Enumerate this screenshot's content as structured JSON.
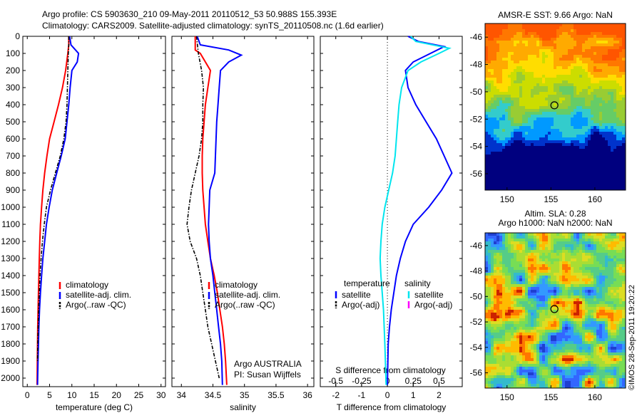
{
  "header": {
    "line1": "Argo profile: CS 5903630_210 09-May-2011 20110512_53 50.988S 155.393E",
    "line2": "Climatology: CARS2009. Satellite-adjusted climatology: synTS_20110508.nc (1.6d earlier)"
  },
  "chart_data": [
    {
      "type": "line",
      "xlabel": "temperature (deg C)",
      "xlim": [
        -1,
        31
      ],
      "ylim": [
        0,
        2050
      ],
      "y_reversed": true,
      "xticks": [
        0,
        5,
        10,
        15,
        20,
        25,
        30
      ],
      "yticks": [
        0,
        100,
        200,
        300,
        400,
        500,
        600,
        700,
        800,
        900,
        1000,
        1100,
        1200,
        1300,
        1400,
        1500,
        1600,
        1700,
        1800,
        1900,
        2000
      ],
      "legend": [
        "climatology",
        "satellite-adj. clim.",
        "Argo(..raw -QC)"
      ],
      "legend_position": "lower-right",
      "series": [
        {
          "name": "climatology",
          "color": "#ff0000",
          "x": [
            9.3,
            9.3,
            9.1,
            8.6,
            7.9,
            7.0,
            6.0,
            5.0,
            4.4,
            3.9,
            3.5,
            3.2,
            2.95,
            2.8,
            2.7,
            2.6,
            2.5,
            2.42,
            2.35,
            2.3,
            2.25,
            2.2
          ],
          "y": [
            0,
            50,
            100,
            200,
            300,
            400,
            500,
            600,
            700,
            800,
            900,
            1000,
            1100,
            1200,
            1300,
            1400,
            1500,
            1600,
            1700,
            1800,
            1900,
            2040
          ]
        },
        {
          "name": "satellite-adj. clim.",
          "color": "#0000ff",
          "x": [
            9.5,
            9.8,
            11.5,
            11.2,
            10.0,
            9.6,
            9.3,
            8.9,
            8.5,
            7.6,
            6.6,
            5.6,
            4.9,
            4.3,
            3.9,
            3.5,
            3.2,
            2.95,
            2.75,
            2.6,
            2.5,
            2.4,
            2.3
          ],
          "y": [
            0,
            50,
            100,
            150,
            200,
            300,
            400,
            500,
            600,
            700,
            800,
            900,
            1000,
            1100,
            1200,
            1300,
            1400,
            1500,
            1600,
            1700,
            1800,
            1900,
            2040
          ]
        },
        {
          "name": "Argo(..raw -QC)",
          "color": "#000000",
          "dash": true,
          "x": [
            9.3,
            9.3,
            9.2,
            9.1,
            9.0,
            8.9,
            8.7,
            8.2,
            7.4,
            6.3,
            5.2,
            4.3,
            3.8,
            3.4,
            3.1,
            2.85,
            2.7,
            2.55,
            2.45,
            2.35,
            2.3
          ],
          "y": [
            0,
            50,
            100,
            200,
            300,
            400,
            500,
            600,
            700,
            800,
            900,
            1000,
            1100,
            1200,
            1300,
            1400,
            1500,
            1600,
            1700,
            1800,
            1900
          ]
        }
      ]
    },
    {
      "type": "line",
      "xlabel": "salinity",
      "xlim": [
        33.85,
        36.1
      ],
      "ylim": [
        0,
        2050
      ],
      "y_reversed": true,
      "xticks": [
        34,
        34.5,
        35,
        35.5,
        36
      ],
      "xticklabels": [
        "34",
        "34.5",
        "35",
        "35.5",
        "36"
      ],
      "legend": [
        "climatology",
        "satellite-adj. clim.",
        "Argo(..raw -QC)"
      ],
      "legend_position": "lower-right",
      "annotation": [
        "Argo AUSTRALIA",
        "PI: Susan Wijffels"
      ],
      "series": [
        {
          "name": "climatology",
          "color": "#ff0000",
          "x": [
            34.22,
            34.22,
            34.3,
            34.46,
            34.42,
            34.38,
            34.36,
            34.34,
            34.33,
            34.33,
            34.34,
            34.36,
            34.38,
            34.42,
            34.46,
            34.52,
            34.57,
            34.61,
            34.65,
            34.68,
            34.7,
            34.72
          ],
          "y": [
            0,
            80,
            100,
            200,
            300,
            400,
            500,
            600,
            700,
            800,
            900,
            1000,
            1100,
            1200,
            1300,
            1400,
            1500,
            1600,
            1700,
            1800,
            1900,
            2040
          ]
        },
        {
          "name": "satellite-adj. clim.",
          "color": "#0000ff",
          "x": [
            34.25,
            34.3,
            34.75,
            34.95,
            34.75,
            34.62,
            34.6,
            34.58,
            34.56,
            34.55,
            34.54,
            34.53,
            34.45,
            34.43,
            34.44,
            34.46,
            34.5,
            34.53,
            34.56,
            34.59,
            34.62,
            34.64,
            34.65
          ],
          "y": [
            0,
            50,
            80,
            110,
            150,
            200,
            300,
            400,
            500,
            600,
            700,
            800,
            900,
            1100,
            1200,
            1300,
            1400,
            1500,
            1600,
            1700,
            1800,
            1900,
            2040
          ]
        },
        {
          "name": "Argo(..raw -QC)",
          "color": "#000000",
          "dash": true,
          "x": [
            34.24,
            34.27,
            34.32,
            34.35,
            34.34,
            34.34,
            34.32,
            34.28,
            34.22,
            34.16,
            34.12,
            34.09,
            34.14,
            34.24,
            34.3,
            34.34,
            34.38,
            34.42,
            34.48,
            34.54,
            34.6
          ],
          "y": [
            0,
            100,
            200,
            300,
            400,
            500,
            600,
            700,
            800,
            900,
            1000,
            1100,
            1200,
            1300,
            1400,
            1500,
            1600,
            1700,
            1800,
            1900,
            2000
          ]
        }
      ]
    },
    {
      "type": "line",
      "xlabel": "T difference from climatology",
      "xlabel2": "S difference from climatology",
      "xlim": [
        -2.6,
        2.9
      ],
      "ylim": [
        0,
        2050
      ],
      "y_reversed": true,
      "xticks": [
        -2,
        -1,
        0,
        1,
        2
      ],
      "xticklabels": [
        "-2",
        "-1",
        "0",
        "1",
        "2"
      ],
      "xticks2": [
        -0.5,
        -0.25,
        0,
        0.25,
        0.5
      ],
      "xticklabels2": [
        "-0.5",
        "-0.25",
        "0",
        "0.25",
        "0.5"
      ],
      "zero_line": "dotted",
      "legend_temperature": {
        "title": "temperature",
        "items": [
          "satellite",
          "Argo(-adj)"
        ]
      },
      "legend_salinity": {
        "title": "salinity",
        "items": [
          "satellite",
          "Argo(-adj)"
        ]
      },
      "legend_colors": {
        "t_satellite": "#0000ff",
        "t_argo": "#000000",
        "s_satellite": "#00e5ee",
        "s_argo": "#ff00ff"
      },
      "legend_position": "lower-center",
      "series": [
        {
          "name": "temperature satellite",
          "color": "#0000ff",
          "x": [
            0.8,
            1.2,
            2.2,
            1.0,
            0.7,
            0.8,
            1.1,
            1.5,
            1.9,
            2.2,
            2.5,
            2.1,
            1.6,
            1.0,
            0.7,
            0.5,
            0.35,
            0.25,
            0.15,
            0.08,
            0.03,
            0.0
          ],
          "y": [
            0,
            30,
            60,
            150,
            200,
            300,
            400,
            500,
            600,
            700,
            800,
            900,
            1000,
            1100,
            1200,
            1300,
            1400,
            1500,
            1600,
            1700,
            1800,
            2040
          ]
        },
        {
          "name": "salinity satellite",
          "color": "#00e5ee",
          "x": [
            0.9,
            1.1,
            2.4,
            2.0,
            1.3,
            0.8,
            0.55,
            0.45,
            0.4,
            0.35,
            0.3,
            0.2,
            0.05,
            -0.1,
            -0.2,
            -0.25,
            -0.28,
            -0.25,
            -0.2,
            -0.15,
            -0.1,
            -0.05
          ],
          "y": [
            0,
            30,
            70,
            100,
            150,
            200,
            300,
            400,
            500,
            600,
            700,
            800,
            900,
            1000,
            1100,
            1200,
            1300,
            1400,
            1500,
            1600,
            1800,
            2040
          ]
        }
      ]
    }
  ],
  "map_panels": [
    {
      "title": "AMSR-E SST: 9.66 Argo: NaN",
      "yticks": [
        -46,
        -48,
        -50,
        -52,
        -54,
        -56
      ],
      "xticks": [
        150,
        155,
        160
      ],
      "xlim": [
        147.5,
        163.5
      ],
      "ylim": [
        -57.2,
        -45.0
      ],
      "marker": {
        "lon": 155.393,
        "lat": -50.988
      },
      "palette": [
        "#00007f",
        "#0033cc",
        "#0099ff",
        "#33cccc",
        "#66cc66",
        "#99cc33",
        "#ccdd00",
        "#ffdd00",
        "#ffaa00",
        "#ff7700",
        "#ff5500"
      ]
    },
    {
      "title": "Altim. SLA: 0.28",
      "title2": "Argo h1000: NaN h2000: NaN",
      "yticks": [
        -46,
        -48,
        -50,
        -52,
        -54,
        -56
      ],
      "xticks": [
        150,
        155,
        160
      ],
      "xlim": [
        147.5,
        163.5
      ],
      "ylim": [
        -57.2,
        -45.0
      ],
      "marker": {
        "lon": 155.393,
        "lat": -50.988
      },
      "palette": [
        "#1f3fd0",
        "#3366ff",
        "#3399ff",
        "#33bbcc",
        "#55cc88",
        "#77dd55",
        "#aadd33",
        "#dddd22",
        "#ffbb00",
        "#ff7700",
        "#cc2200"
      ]
    }
  ],
  "credit": "©IMOS 28-Sep-2011 19:20:22"
}
